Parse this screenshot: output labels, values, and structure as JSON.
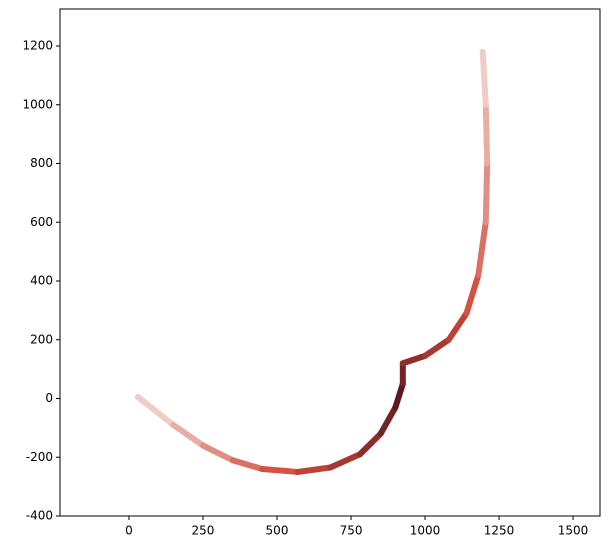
{
  "chart_data": {
    "type": "line",
    "series": [
      {
        "x": [
          30,
          150,
          250,
          350,
          450,
          570,
          680,
          780,
          850,
          900,
          925,
          925,
          1000,
          1080,
          1140,
          1180,
          1205,
          1210,
          1205,
          1195
        ],
        "values": [
          5,
          -90,
          -160,
          -210,
          -240,
          -250,
          -235,
          -190,
          -120,
          -30,
          50,
          120,
          145,
          200,
          290,
          420,
          600,
          800,
          1000,
          1180
        ],
        "colors": [
          "#f2dcd5",
          "#d24a3b",
          "#5a1a20"
        ]
      }
    ],
    "xlim": [
      -233,
      1591
    ],
    "xticks": [
      0,
      250,
      500,
      750,
      1000,
      1250,
      1500
    ],
    "ylim": [
      -400,
      1326
    ],
    "yticks": [
      -400,
      -200,
      0,
      200,
      400,
      600,
      800,
      1000,
      1200
    ]
  }
}
